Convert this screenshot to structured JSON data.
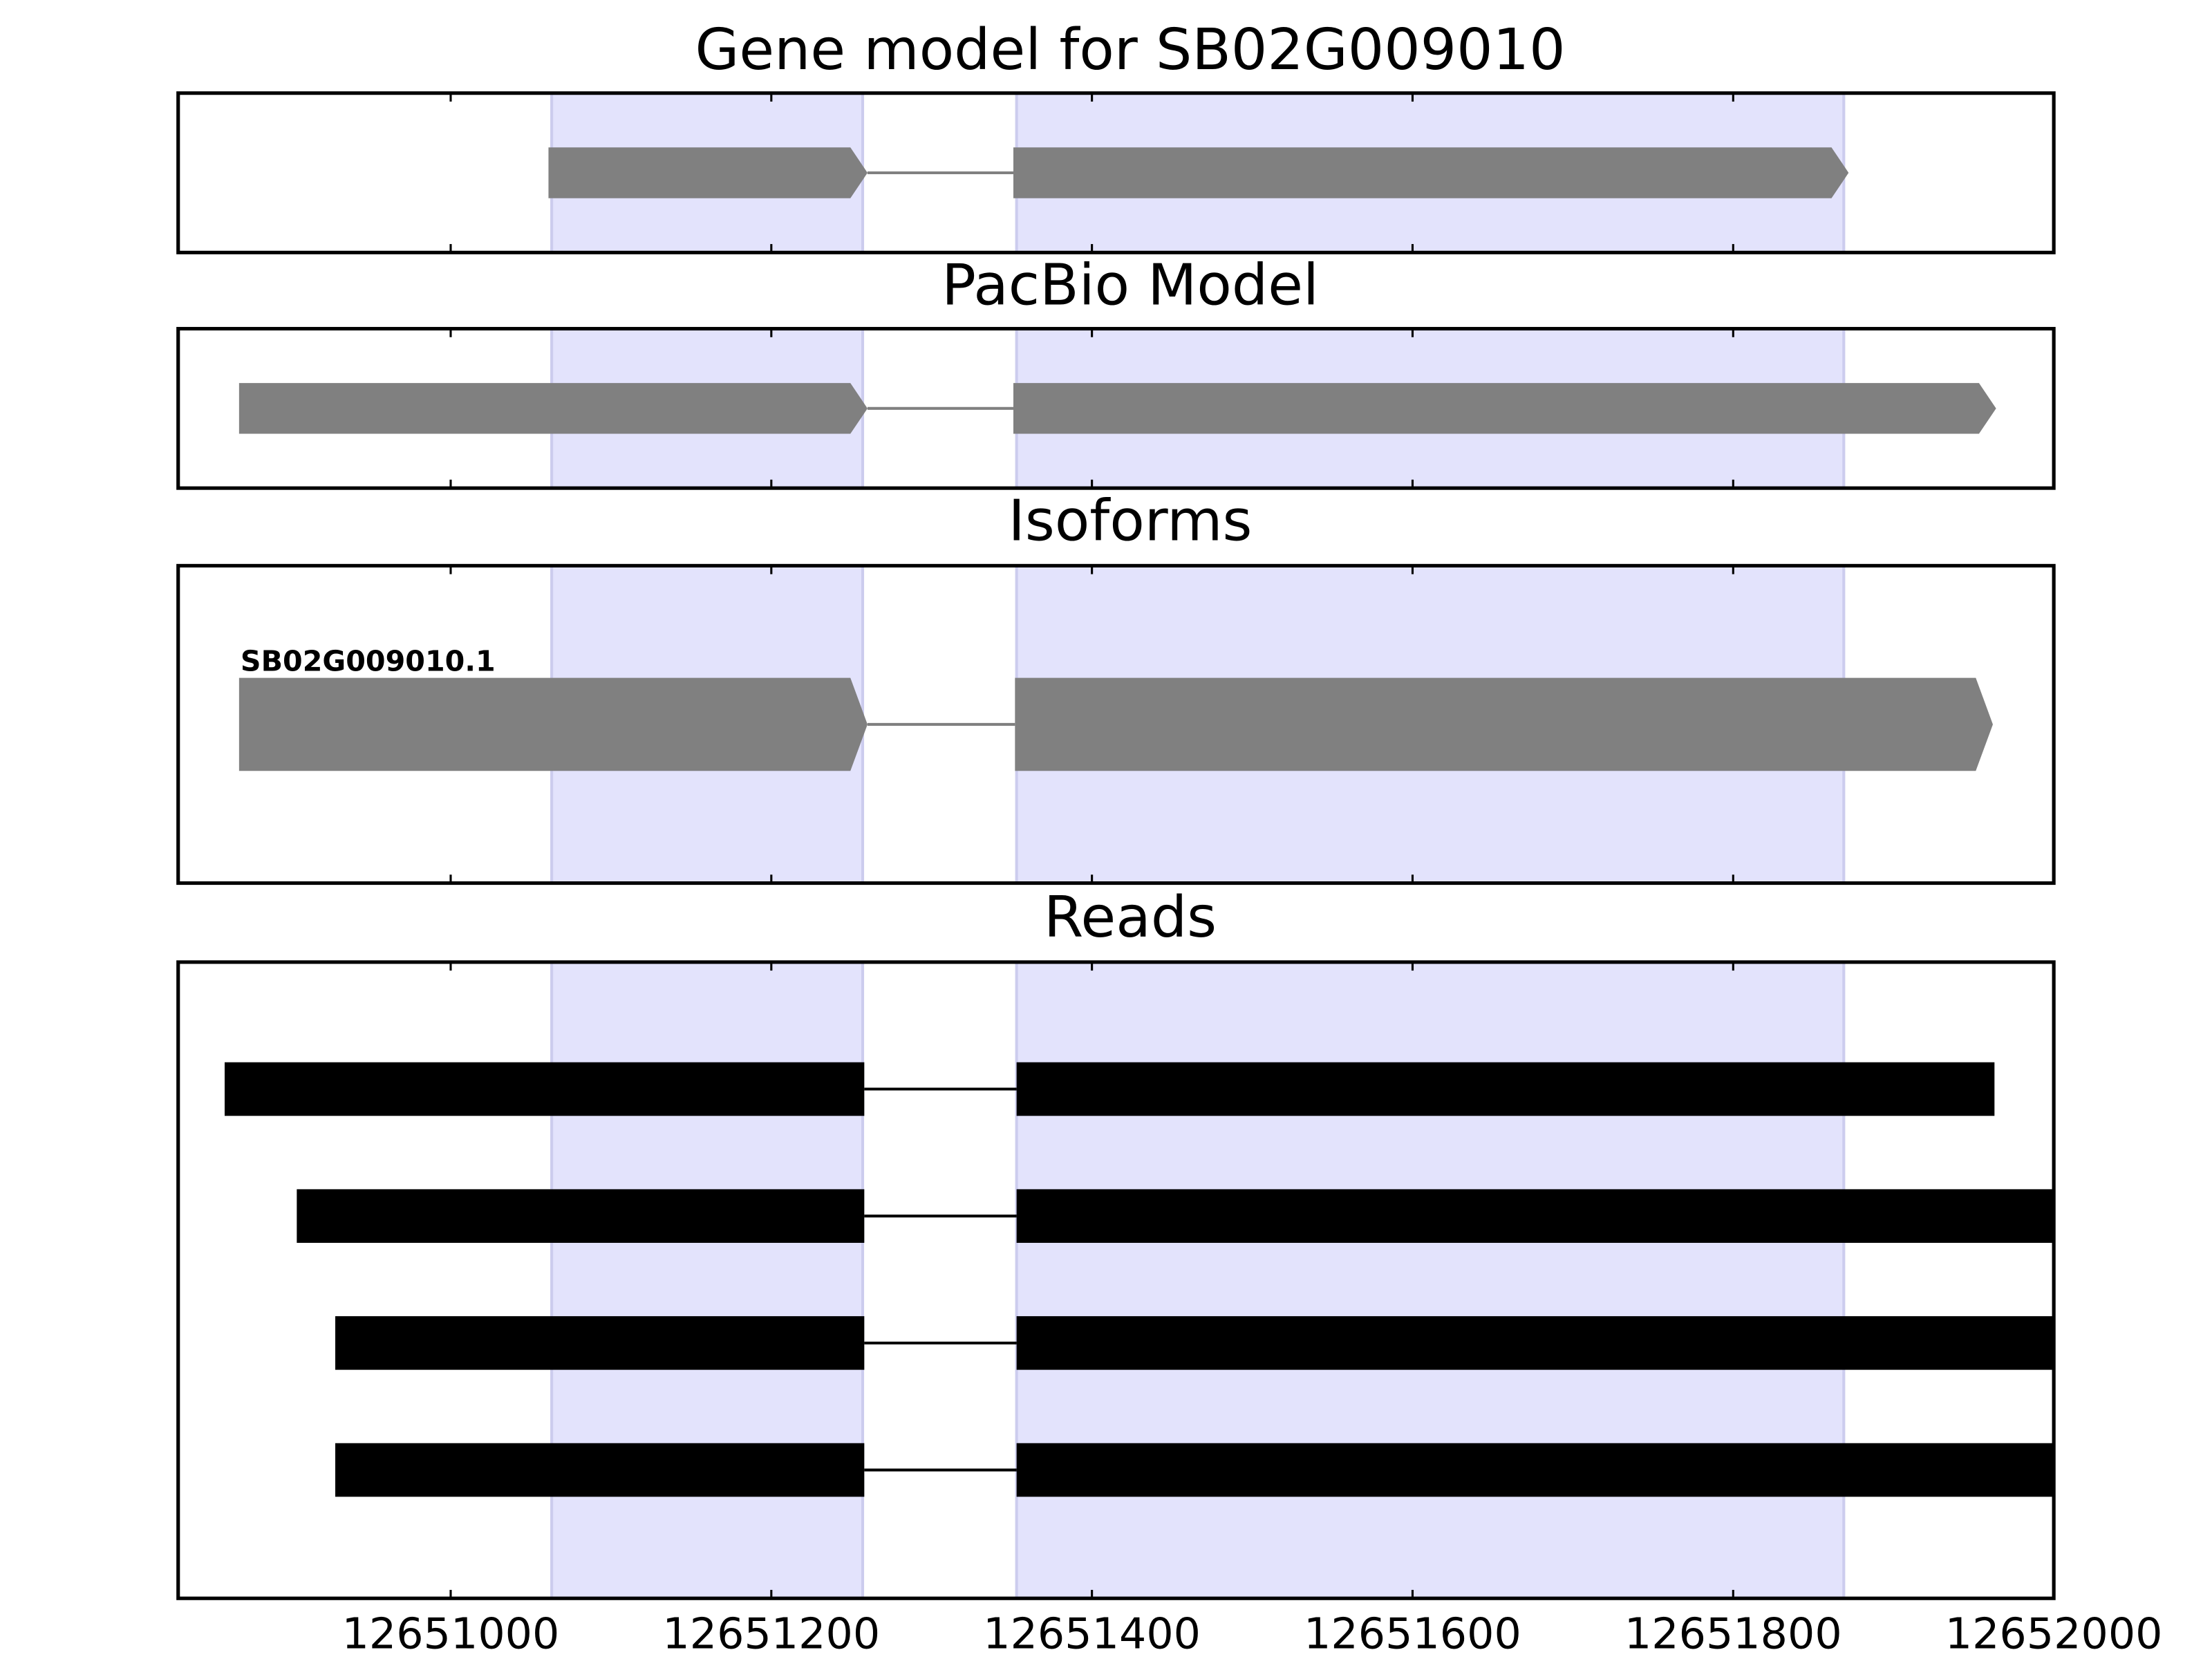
{
  "chart_data": {
    "type": "gene",
    "xlim": [
      12650830,
      12652000
    ],
    "xticks": [
      12651000,
      12651200,
      12651400,
      12651600,
      12651800,
      12652000
    ],
    "regions": [
      [
        12651063,
        12651257
      ],
      [
        12651353,
        12651869
      ]
    ],
    "region_color": "#e3e3fc",
    "panels": [
      {
        "title": "Gene model for SB02G009010",
        "style": "arrow",
        "color": "#808080",
        "features": [
          {
            "exons": [
              [
                12651061,
                12651260
              ],
              [
                12651351,
                12651872
              ]
            ]
          }
        ]
      },
      {
        "title": "PacBio Model",
        "style": "arrow",
        "color": "#808080",
        "features": [
          {
            "exons": [
              [
                12650868,
                12651260
              ],
              [
                12651351,
                12651964
              ]
            ]
          }
        ]
      },
      {
        "title": "Isoforms",
        "style": "arrow",
        "color": "#808080",
        "features": [
          {
            "label": "SB02G009010.1",
            "exons": [
              [
                12650868,
                12651260
              ],
              [
                12651352,
                12651962
              ]
            ]
          }
        ]
      },
      {
        "title": "Reads",
        "style": "box",
        "color": "#000000",
        "features": [
          {
            "exons": [
              [
                12650859,
                12651258
              ],
              [
                12651353,
                12651963
              ]
            ]
          },
          {
            "exons": [
              [
                12650904,
                12651258
              ],
              [
                12651353,
                12652000
              ]
            ]
          },
          {
            "exons": [
              [
                12650928,
                12651258
              ],
              [
                12651353,
                12652000
              ]
            ]
          },
          {
            "exons": [
              [
                12650928,
                12651258
              ],
              [
                12651353,
                12652000
              ]
            ]
          }
        ]
      }
    ]
  }
}
